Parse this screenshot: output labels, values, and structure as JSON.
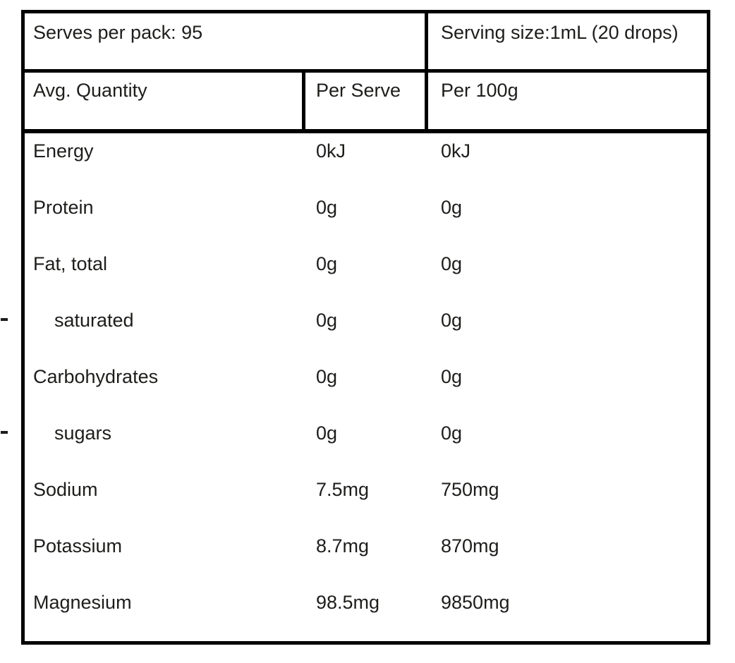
{
  "table": {
    "serves_per_pack": "Serves per pack: 95",
    "serving_size": "Serving size:1mL (20 drops)",
    "columns": [
      "Avg. Quantity",
      "Per Serve",
      "Per 100g"
    ],
    "rows": [
      {
        "label": "Energy",
        "per_serve": "0kJ",
        "per_100g": "0kJ",
        "indent": false
      },
      {
        "label": "Protein",
        "per_serve": "0g",
        "per_100g": "0g",
        "indent": false
      },
      {
        "label": "Fat, total",
        "per_serve": "0g",
        "per_100g": "0g",
        "indent": false
      },
      {
        "label": "saturated",
        "per_serve": "0g",
        "per_100g": "0g",
        "indent": true
      },
      {
        "label": "Carbohydrates",
        "per_serve": "0g",
        "per_100g": "0g",
        "indent": false
      },
      {
        "label": "sugars",
        "per_serve": "0g",
        "per_100g": "0g",
        "indent": true
      },
      {
        "label": "Sodium",
        "per_serve": "7.5mg",
        "per_100g": "750mg",
        "indent": false
      },
      {
        "label": "Potassium",
        "per_serve": "8.7mg",
        "per_100g": "870mg",
        "indent": false
      },
      {
        "label": "Magnesium",
        "per_serve": "98.5mg",
        "per_100g": "9850mg",
        "indent": false
      }
    ],
    "indent_marker": "-"
  },
  "colors": {
    "text": "#1d1d1b",
    "border": "#000000",
    "background": "#ffffff"
  }
}
